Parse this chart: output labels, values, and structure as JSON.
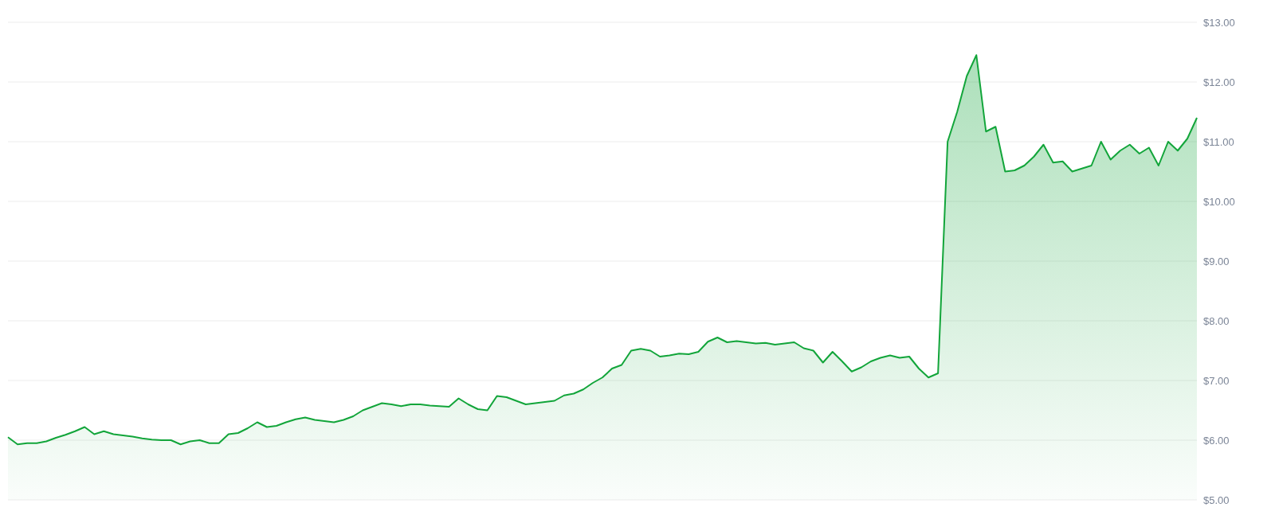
{
  "chart_data": {
    "type": "area",
    "categories": [
      null,
      null,
      null,
      null,
      null,
      null,
      null,
      null,
      null,
      null,
      null,
      null,
      null,
      null,
      null,
      null,
      null,
      null,
      null,
      null,
      null,
      null,
      null,
      null,
      null,
      null,
      null,
      null,
      null,
      null,
      null,
      null,
      null,
      null,
      null,
      null,
      null,
      null,
      null,
      null,
      null,
      null,
      null,
      null,
      null,
      null,
      null,
      null,
      null,
      null,
      null,
      null,
      null,
      null,
      null,
      null,
      null,
      null,
      null,
      null,
      null,
      null,
      null,
      null,
      null,
      null,
      null,
      null,
      null,
      null,
      null,
      null,
      null,
      null,
      null,
      null,
      null,
      null,
      null,
      null,
      null,
      null,
      null,
      null,
      null,
      null,
      null,
      null,
      null,
      null,
      null,
      null,
      null,
      null,
      null,
      null,
      null,
      null,
      null,
      null,
      null,
      null,
      null,
      null,
      null,
      null,
      null,
      null,
      null,
      null,
      null,
      null,
      null,
      null,
      null,
      null,
      null,
      null,
      null,
      null,
      null,
      null,
      null,
      null,
      null
    ],
    "series": [
      {
        "color": "#12a53a",
        "values": [
          6.05,
          5.93,
          5.95,
          5.95,
          5.98,
          6.04,
          6.09,
          6.15,
          6.22,
          6.1,
          6.15,
          6.1,
          6.08,
          6.06,
          6.03,
          6.01,
          6.0,
          6.0,
          5.93,
          5.98,
          6.0,
          5.95,
          5.95,
          6.1,
          6.12,
          6.2,
          6.3,
          6.22,
          6.24,
          6.3,
          6.35,
          6.38,
          6.34,
          6.32,
          6.3,
          6.34,
          6.4,
          6.5,
          6.56,
          6.62,
          6.6,
          6.57,
          6.6,
          6.6,
          6.58,
          6.57,
          6.56,
          6.7,
          6.6,
          6.52,
          6.5,
          6.74,
          6.72,
          6.66,
          6.6,
          6.62,
          6.64,
          6.66,
          6.75,
          6.78,
          6.85,
          6.96,
          7.05,
          7.2,
          7.26,
          7.5,
          7.53,
          7.5,
          7.4,
          7.42,
          7.45,
          7.44,
          7.48,
          7.65,
          7.72,
          7.64,
          7.66,
          7.64,
          7.62,
          7.63,
          7.6,
          7.62,
          7.64,
          7.54,
          7.5,
          7.3,
          7.48,
          7.32,
          7.15,
          7.22,
          7.32,
          7.38,
          7.42,
          7.38,
          7.4,
          7.2,
          7.05,
          7.12,
          11.0,
          11.5,
          12.1,
          12.45,
          11.17,
          11.25,
          10.5,
          10.52,
          10.6,
          10.75,
          10.95,
          10.65,
          10.67,
          10.5,
          10.55,
          10.6,
          11.0,
          10.7,
          10.85,
          10.95,
          10.8,
          10.9,
          10.6,
          11.0,
          10.85,
          11.05,
          11.4
        ]
      }
    ],
    "ylim": [
      5,
      13
    ],
    "yticks": [
      {
        "value": 5,
        "label": "$5.00"
      },
      {
        "value": 6,
        "label": "$6.00"
      },
      {
        "value": 7,
        "label": "$7.00"
      },
      {
        "value": 8,
        "label": "$8.00"
      },
      {
        "value": 9,
        "label": "$9.00"
      },
      {
        "value": 10,
        "label": "$10.00"
      },
      {
        "value": 11,
        "label": "$11.00"
      },
      {
        "value": 12,
        "label": "$12.00"
      },
      {
        "value": 13,
        "label": "$13.00"
      }
    ],
    "grid": "y",
    "tick_labels": "y"
  }
}
